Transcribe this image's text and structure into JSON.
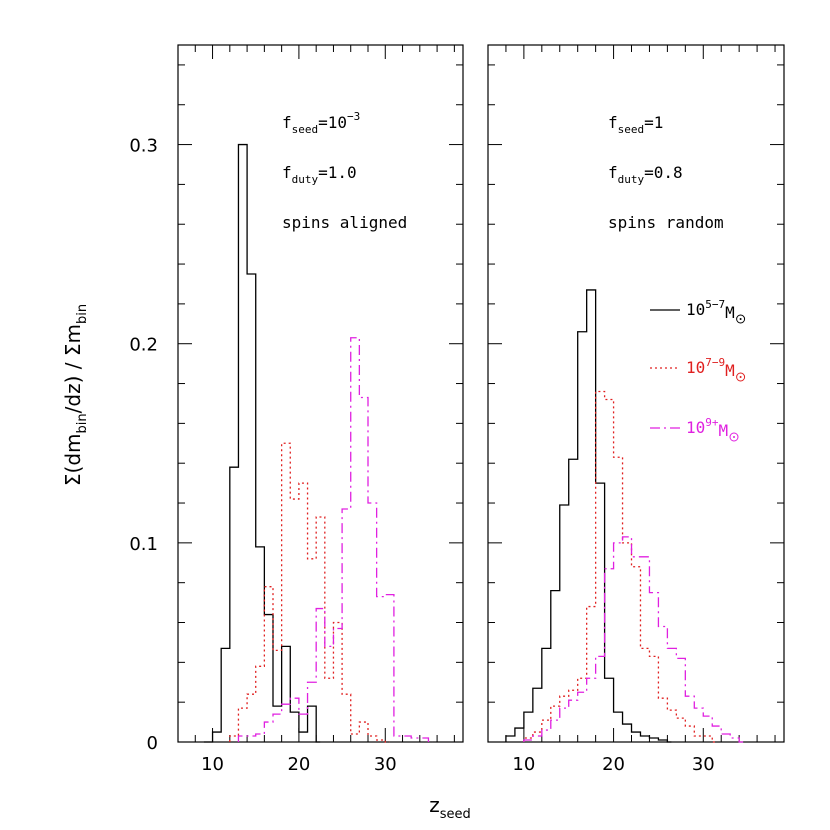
{
  "chart_data": {
    "type": "histogram-step",
    "ylabel": {
      "pre": "Σ(dm",
      "sub1": "bin",
      "mid": "/dz)  /  Σm",
      "sub2": "bin"
    },
    "xlabel": {
      "main": "z",
      "sub": "seed"
    },
    "yticks": [
      "0",
      "0.1",
      "0.2",
      "0.3"
    ],
    "xticks": [
      "10",
      "20",
      "30"
    ],
    "ylim": [
      0,
      0.3
    ],
    "panels": [
      {
        "xlim": [
          6,
          39
        ],
        "ylim": [
          0,
          0.35
        ],
        "annotations": [
          {
            "main": "f",
            "sub": "seed",
            "rest": "=10",
            "sup": "−3"
          },
          {
            "main": "f",
            "sub": "duty",
            "rest": "=1.0",
            "sup": ""
          },
          {
            "main": "spins aligned",
            "sub": "",
            "rest": "",
            "sup": ""
          }
        ],
        "series": [
          {
            "key": "s1",
            "color": "#000000",
            "values": [
              [
                9,
                0
              ],
              [
                10,
                0.005
              ],
              [
                11,
                0.047
              ],
              [
                12,
                0.138
              ],
              [
                13,
                0.3
              ],
              [
                14,
                0.235
              ],
              [
                15,
                0.098
              ],
              [
                16,
                0.064
              ],
              [
                17,
                0.018
              ],
              [
                18,
                0.048
              ],
              [
                19,
                0.015
              ],
              [
                20,
                0.005
              ],
              [
                21,
                0.018
              ],
              [
                22,
                0.0
              ]
            ]
          },
          {
            "key": "s2",
            "color": "#e02020",
            "values": [
              [
                12,
                0.003
              ],
              [
                13,
                0.017
              ],
              [
                14,
                0.024
              ],
              [
                15,
                0.038
              ],
              [
                16,
                0.078
              ],
              [
                17,
                0.046
              ],
              [
                18,
                0.15
              ],
              [
                19,
                0.122
              ],
              [
                20,
                0.13
              ],
              [
                21,
                0.092
              ],
              [
                22,
                0.113
              ],
              [
                23,
                0.032
              ],
              [
                24,
                0.06
              ],
              [
                25,
                0.024
              ],
              [
                26,
                0.004
              ],
              [
                27,
                0.01
              ],
              [
                28,
                0.003
              ],
              [
                29,
                0.001
              ],
              [
                30,
                0.0
              ]
            ]
          },
          {
            "key": "s3",
            "color": "#e020e0",
            "values": [
              [
                13,
                0.003
              ],
              [
                14,
                0.003
              ],
              [
                15,
                0.004
              ],
              [
                16,
                0.01
              ],
              [
                17,
                0.014
              ],
              [
                18,
                0.019
              ],
              [
                19,
                0.022
              ],
              [
                20,
                0.014
              ],
              [
                21,
                0.03
              ],
              [
                22,
                0.067
              ],
              [
                23,
                0.048
              ],
              [
                24,
                0.057
              ],
              [
                25,
                0.117
              ],
              [
                26,
                0.203
              ],
              [
                27,
                0.173
              ],
              [
                28,
                0.12
              ],
              [
                29,
                0.073
              ],
              [
                30,
                0.074
              ],
              [
                31,
                0.003
              ],
              [
                33,
                0.002
              ],
              [
                35,
                0.0
              ]
            ]
          }
        ]
      },
      {
        "xlim": [
          6,
          39
        ],
        "ylim": [
          0,
          0.35
        ],
        "annotations": [
          {
            "main": "f",
            "sub": "seed",
            "rest": "=1",
            "sup": ""
          },
          {
            "main": "f",
            "sub": "duty",
            "rest": "=0.8",
            "sup": ""
          },
          {
            "main": "spins random",
            "sub": "",
            "rest": "",
            "sup": ""
          }
        ],
        "legend": [
          {
            "key": "s1",
            "color": "#000000",
            "pre": "10",
            "sup": "5−7",
            "post": "M",
            "dash": ""
          },
          {
            "key": "s2",
            "color": "#e02020",
            "pre": "10",
            "sup": "7−9",
            "post": "M",
            "dash": "2,3"
          },
          {
            "key": "s3",
            "color": "#e020e0",
            "pre": "10",
            "sup": "9+",
            "post": "M",
            "dash": "10,4,2,4"
          }
        ],
        "series": [
          {
            "key": "s1",
            "color": "#000000",
            "values": [
              [
                8,
                0.003
              ],
              [
                9,
                0.007
              ],
              [
                10,
                0.015
              ],
              [
                11,
                0.027
              ],
              [
                12,
                0.047
              ],
              [
                13,
                0.076
              ],
              [
                14,
                0.119
              ],
              [
                15,
                0.142
              ],
              [
                16,
                0.206
              ],
              [
                17,
                0.227
              ],
              [
                18,
                0.13
              ],
              [
                19,
                0.032
              ],
              [
                20,
                0.015
              ],
              [
                21,
                0.009
              ],
              [
                22,
                0.005
              ],
              [
                23,
                0.003
              ],
              [
                24,
                0.002
              ],
              [
                25,
                0.001
              ],
              [
                26,
                0.0
              ]
            ]
          },
          {
            "key": "s2",
            "color": "#e02020",
            "values": [
              [
                10,
                0.002
              ],
              [
                11,
                0.005
              ],
              [
                12,
                0.011
              ],
              [
                13,
                0.018
              ],
              [
                14,
                0.023
              ],
              [
                15,
                0.026
              ],
              [
                16,
                0.032
              ],
              [
                17,
                0.068
              ],
              [
                18,
                0.176
              ],
              [
                19,
                0.172
              ],
              [
                20,
                0.143
              ],
              [
                21,
                0.1
              ],
              [
                22,
                0.088
              ],
              [
                23,
                0.047
              ],
              [
                24,
                0.043
              ],
              [
                25,
                0.022
              ],
              [
                26,
                0.016
              ],
              [
                27,
                0.012
              ],
              [
                28,
                0.008
              ],
              [
                29,
                0.003
              ],
              [
                31,
                0.0
              ]
            ]
          },
          {
            "key": "s3",
            "color": "#e020e0",
            "values": [
              [
                10,
                0.001
              ],
              [
                11,
                0.003
              ],
              [
                12,
                0.006
              ],
              [
                13,
                0.011
              ],
              [
                14,
                0.017
              ],
              [
                15,
                0.021
              ],
              [
                16,
                0.025
              ],
              [
                17,
                0.032
              ],
              [
                18,
                0.043
              ],
              [
                19,
                0.087
              ],
              [
                20,
                0.1
              ],
              [
                21,
                0.103
              ],
              [
                22,
                0.093
              ],
              [
                23,
                0.093
              ],
              [
                24,
                0.075
              ],
              [
                25,
                0.058
              ],
              [
                26,
                0.047
              ],
              [
                27,
                0.042
              ],
              [
                28,
                0.023
              ],
              [
                29,
                0.017
              ],
              [
                30,
                0.013
              ],
              [
                31,
                0.008
              ],
              [
                32,
                0.004
              ],
              [
                33,
                0.002
              ],
              [
                34,
                0.0
              ]
            ]
          }
        ]
      }
    ]
  }
}
